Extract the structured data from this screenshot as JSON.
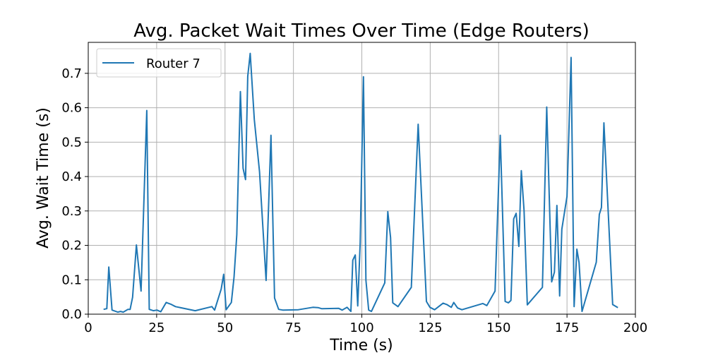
{
  "chart_data": {
    "type": "line",
    "title": "Avg. Packet Wait Times Over Time (Edge Routers)",
    "xlabel": "Time (s)",
    "ylabel": "Avg. Wait Time (s)",
    "xlim": [
      0,
      200
    ],
    "ylim": [
      0,
      0.79
    ],
    "xticks": [
      0,
      25,
      50,
      75,
      100,
      125,
      150,
      175,
      200
    ],
    "yticks": [
      0.0,
      0.1,
      0.2,
      0.3,
      0.4,
      0.5,
      0.6,
      0.7
    ],
    "xtick_labels": [
      "0",
      "25",
      "50",
      "75",
      "100",
      "125",
      "150",
      "175",
      "200"
    ],
    "ytick_labels": [
      "0.0",
      "0.1",
      "0.2",
      "0.3",
      "0.4",
      "0.5",
      "0.6",
      "0.7"
    ],
    "grid": true,
    "legend_position": "top-left",
    "series": [
      {
        "name": "Router 7",
        "color": "#1f77b4",
        "x": [
          5.6,
          6.8,
          7.5,
          8.7,
          10.8,
          11.8,
          12.8,
          14.5,
          15.3,
          16.2,
          17.6,
          19.3,
          21.4,
          22.3,
          23.8,
          25.1,
          26.5,
          28.5,
          30.2,
          31.9,
          39.1,
          45.2,
          46.2,
          48.6,
          49.5,
          50.4,
          52.3,
          53.3,
          54.3,
          55.6,
          56.6,
          57.5,
          58.3,
          59.2,
          60.7,
          62.6,
          65.0,
          66.8,
          68.1,
          69.6,
          71.1,
          76.8,
          82.1,
          84.0,
          85.3,
          91.5,
          92.8,
          94.6,
          96.0,
          96.7,
          97.6,
          98.5,
          99.4,
          100.6,
          101.5,
          102.5,
          103.5,
          108.4,
          109.5,
          110.5,
          111.3,
          113.2,
          118.1,
          120.6,
          123.6,
          124.9,
          126.6,
          129.7,
          131.1,
          132.7,
          133.6,
          135.0,
          136.6,
          144.2,
          145.7,
          148.7,
          150.6,
          152.4,
          153.6,
          154.5,
          155.5,
          156.4,
          157.4,
          158.3,
          159.3,
          160.5,
          166.0,
          167.6,
          169.4,
          170.4,
          171.3,
          172.3,
          173.1,
          175.0,
          176.5,
          177.6,
          178.6,
          179.4,
          180.5,
          185.7,
          186.8,
          187.6,
          188.5,
          191.7,
          193.6
        ],
        "y": [
          0.014,
          0.016,
          0.137,
          0.012,
          0.006,
          0.008,
          0.006,
          0.014,
          0.014,
          0.049,
          0.201,
          0.067,
          0.592,
          0.014,
          0.01,
          0.012,
          0.007,
          0.034,
          0.029,
          0.022,
          0.01,
          0.022,
          0.012,
          0.073,
          0.116,
          0.013,
          0.034,
          0.108,
          0.231,
          0.647,
          0.424,
          0.391,
          0.691,
          0.758,
          0.566,
          0.414,
          0.098,
          0.52,
          0.047,
          0.014,
          0.012,
          0.013,
          0.02,
          0.019,
          0.016,
          0.017,
          0.012,
          0.02,
          0.008,
          0.157,
          0.172,
          0.024,
          0.208,
          0.69,
          0.099,
          0.012,
          0.008,
          0.091,
          0.298,
          0.223,
          0.033,
          0.022,
          0.078,
          0.552,
          0.037,
          0.02,
          0.013,
          0.032,
          0.028,
          0.02,
          0.034,
          0.018,
          0.013,
          0.031,
          0.025,
          0.067,
          0.52,
          0.037,
          0.033,
          0.04,
          0.277,
          0.293,
          0.197,
          0.417,
          0.301,
          0.027,
          0.078,
          0.602,
          0.094,
          0.122,
          0.316,
          0.053,
          0.247,
          0.342,
          0.746,
          0.022,
          0.189,
          0.15,
          0.008,
          0.151,
          0.29,
          0.31,
          0.556,
          0.028,
          0.019
        ]
      }
    ]
  }
}
